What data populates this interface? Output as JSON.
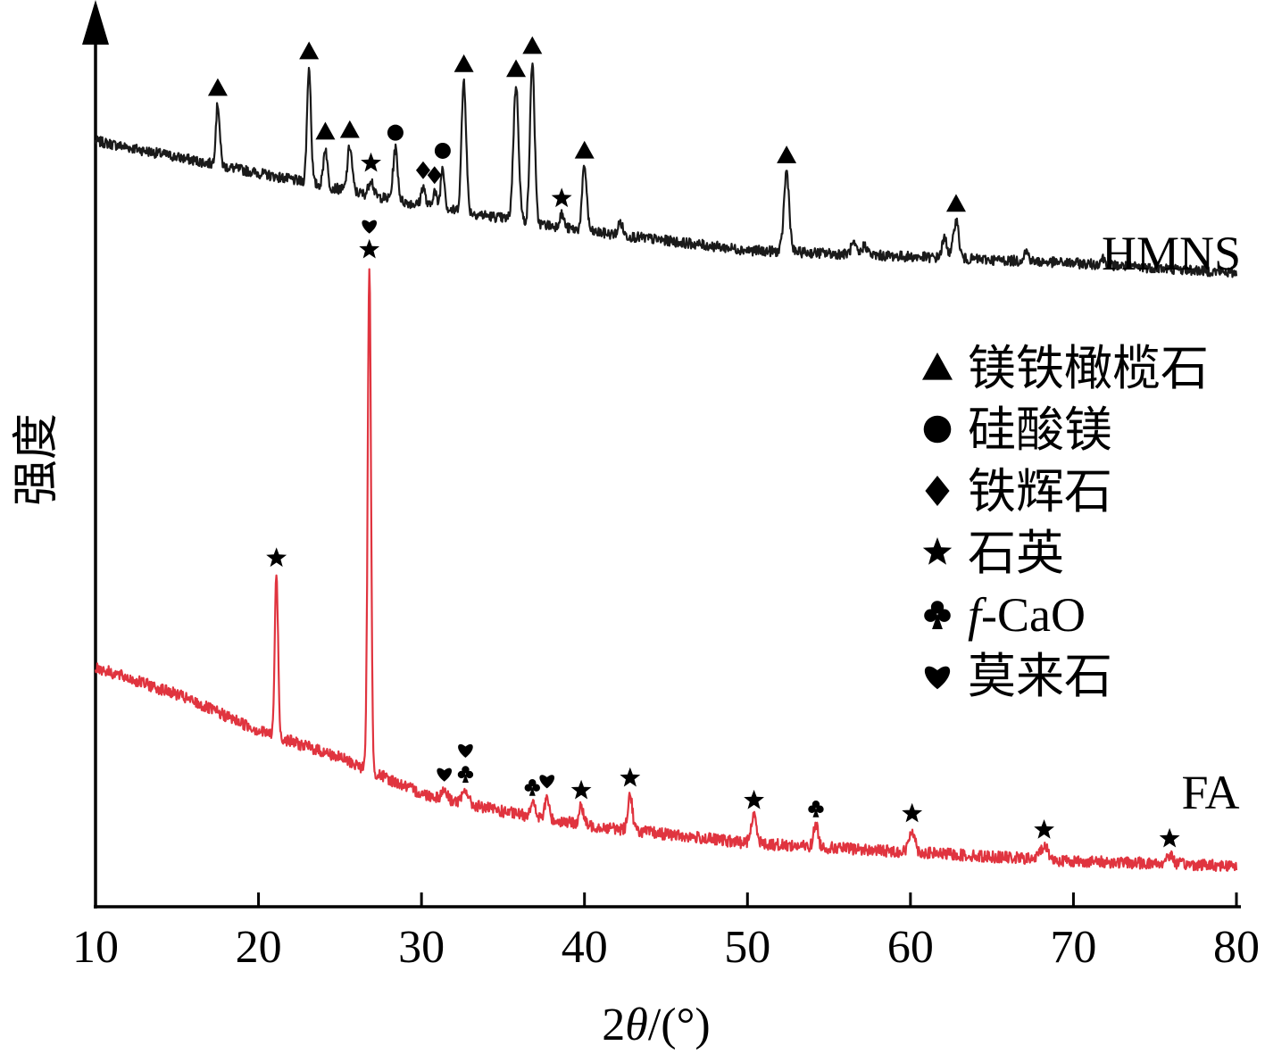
{
  "chart_data": {
    "type": "line",
    "title": "",
    "xlabel_prefix": "2",
    "xlabel_theta": "θ",
    "xlabel_suffix": "/(°)",
    "ylabel": "强度",
    "xlim": [
      10,
      80
    ],
    "xticks": [
      10,
      20,
      30,
      40,
      50,
      60,
      70,
      80
    ],
    "yaxis_numbered": false,
    "series": [
      {
        "name": "HMNS",
        "color": "#1a1a1a",
        "baseline": [
          [
            10,
            70
          ],
          [
            20,
            60
          ],
          [
            30,
            50
          ],
          [
            40,
            42
          ],
          [
            50,
            36
          ],
          [
            60,
            34
          ],
          [
            70,
            32
          ],
          [
            80,
            29
          ]
        ],
        "peaks": [
          {
            "x": 17.5,
            "h": 19,
            "w": 0.12
          },
          {
            "x": 23.1,
            "h": 36,
            "w": 0.12
          },
          {
            "x": 24.1,
            "h": 12,
            "w": 0.12
          },
          {
            "x": 25.6,
            "h": 14,
            "w": 0.14
          },
          {
            "x": 26.9,
            "h": 5,
            "w": 0.14
          },
          {
            "x": 28.4,
            "h": 16,
            "w": 0.14
          },
          {
            "x": 30.1,
            "h": 6,
            "w": 0.12
          },
          {
            "x": 30.8,
            "h": 5,
            "w": 0.12
          },
          {
            "x": 31.3,
            "h": 13,
            "w": 0.12
          },
          {
            "x": 32.6,
            "h": 41,
            "w": 0.14
          },
          {
            "x": 35.8,
            "h": 42,
            "w": 0.16
          },
          {
            "x": 36.8,
            "h": 50,
            "w": 0.14
          },
          {
            "x": 38.6,
            "h": 4,
            "w": 0.14
          },
          {
            "x": 40.0,
            "h": 20,
            "w": 0.14
          },
          {
            "x": 42.2,
            "h": 4,
            "w": 0.14
          },
          {
            "x": 52.4,
            "h": 25,
            "w": 0.16
          },
          {
            "x": 56.5,
            "h": 3,
            "w": 0.16
          },
          {
            "x": 57.2,
            "h": 3,
            "w": 0.16
          },
          {
            "x": 62.1,
            "h": 6,
            "w": 0.16
          },
          {
            "x": 62.8,
            "h": 12,
            "w": 0.16
          },
          {
            "x": 67.1,
            "h": 3,
            "w": 0.16
          },
          {
            "x": 71.8,
            "h": 2,
            "w": 0.16
          }
        ]
      },
      {
        "name": "FA",
        "color": "#e0343f",
        "baseline": [
          [
            10,
            44
          ],
          [
            15,
            38
          ],
          [
            20,
            30
          ],
          [
            25,
            24
          ],
          [
            30,
            16
          ],
          [
            35,
            12
          ],
          [
            40,
            9
          ],
          [
            45,
            7
          ],
          [
            50,
            5
          ],
          [
            55,
            4
          ],
          [
            60,
            3
          ],
          [
            65,
            2
          ],
          [
            70,
            1
          ],
          [
            80,
            0
          ]
        ],
        "peaks": [
          {
            "x": 21.1,
            "h": 36,
            "w": 0.1
          },
          {
            "x": 26.8,
            "h": 112,
            "w": 0.1
          },
          {
            "x": 31.4,
            "h": 2,
            "w": 0.16
          },
          {
            "x": 32.7,
            "h": 3,
            "w": 0.16
          },
          {
            "x": 36.8,
            "h": 3,
            "w": 0.16
          },
          {
            "x": 37.7,
            "h": 5,
            "w": 0.12
          },
          {
            "x": 39.8,
            "h": 4,
            "w": 0.14
          },
          {
            "x": 42.8,
            "h": 8,
            "w": 0.14
          },
          {
            "x": 50.4,
            "h": 6,
            "w": 0.18
          },
          {
            "x": 54.2,
            "h": 5,
            "w": 0.14
          },
          {
            "x": 60.1,
            "h": 5,
            "w": 0.18
          },
          {
            "x": 68.2,
            "h": 3,
            "w": 0.24
          },
          {
            "x": 75.9,
            "h": 2,
            "w": 0.2
          }
        ]
      }
    ],
    "legend": [
      {
        "symbol": "triangle",
        "label": "镁铁橄榄石"
      },
      {
        "symbol": "circle",
        "label": "硅酸镁"
      },
      {
        "symbol": "diamond",
        "label": "铁辉石"
      },
      {
        "symbol": "star",
        "label": "石英"
      },
      {
        "symbol": "club",
        "label_italic": "f",
        "label": "-CaO"
      },
      {
        "symbol": "heart",
        "label": "莫来石"
      }
    ],
    "legend_placement": "right-middle",
    "markers": [
      {
        "series": "HMNS",
        "x": 17.5,
        "symbols": [
          "triangle"
        ]
      },
      {
        "series": "HMNS",
        "x": 23.1,
        "symbols": [
          "triangle"
        ]
      },
      {
        "series": "HMNS",
        "x": 24.1,
        "symbols": [
          "triangle"
        ]
      },
      {
        "series": "HMNS",
        "x": 25.6,
        "symbols": [
          "triangle"
        ]
      },
      {
        "series": "HMNS",
        "x": 26.9,
        "symbols": [
          "star"
        ]
      },
      {
        "series": "HMNS",
        "x": 28.4,
        "symbols": [
          "circle"
        ]
      },
      {
        "series": "HMNS",
        "x": 30.1,
        "symbols": [
          "diamond"
        ]
      },
      {
        "series": "HMNS",
        "x": 30.8,
        "symbols": [
          "diamond"
        ]
      },
      {
        "series": "HMNS",
        "x": 31.3,
        "symbols": [
          "circle"
        ]
      },
      {
        "series": "HMNS",
        "x": 32.6,
        "symbols": [
          "triangle"
        ]
      },
      {
        "series": "HMNS",
        "x": 35.8,
        "symbols": [
          "triangle"
        ]
      },
      {
        "series": "HMNS",
        "x": 36.8,
        "symbols": [
          "triangle"
        ]
      },
      {
        "series": "HMNS",
        "x": 38.6,
        "symbols": [
          "star"
        ]
      },
      {
        "series": "HMNS",
        "x": 40.0,
        "symbols": [
          "triangle"
        ]
      },
      {
        "series": "HMNS",
        "x": 52.4,
        "symbols": [
          "triangle"
        ]
      },
      {
        "series": "HMNS",
        "x": 62.8,
        "symbols": [
          "triangle"
        ]
      },
      {
        "series": "FA",
        "x": 21.1,
        "symbols": [
          "star"
        ]
      },
      {
        "series": "FA",
        "x": 26.8,
        "symbols": [
          "star",
          "heart"
        ]
      },
      {
        "series": "FA",
        "x": 31.4,
        "symbols": [
          "heart"
        ]
      },
      {
        "series": "FA",
        "x": 32.7,
        "symbols": [
          "club",
          "heart"
        ]
      },
      {
        "series": "FA",
        "x": 36.8,
        "symbols": [
          "club"
        ]
      },
      {
        "series": "FA",
        "x": 37.7,
        "symbols": [
          "heart"
        ]
      },
      {
        "series": "FA",
        "x": 39.8,
        "symbols": [
          "star"
        ]
      },
      {
        "series": "FA",
        "x": 42.8,
        "symbols": [
          "star"
        ]
      },
      {
        "series": "FA",
        "x": 50.4,
        "symbols": [
          "star"
        ]
      },
      {
        "series": "FA",
        "x": 54.2,
        "symbols": [
          "club"
        ]
      },
      {
        "series": "FA",
        "x": 60.1,
        "symbols": [
          "star"
        ]
      },
      {
        "series": "FA",
        "x": 68.2,
        "symbols": [
          "star"
        ]
      },
      {
        "series": "FA",
        "x": 75.9,
        "symbols": [
          "star"
        ]
      }
    ]
  }
}
